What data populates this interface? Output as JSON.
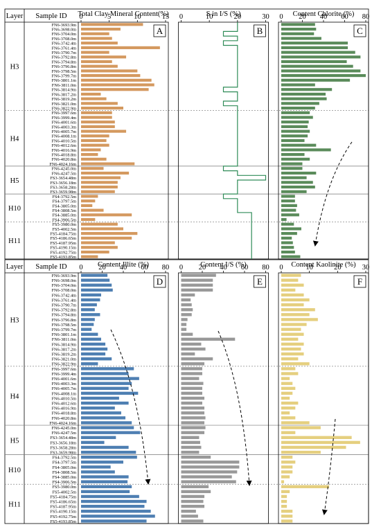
{
  "chart_data": [
    {
      "type": "bar",
      "panel": "A",
      "title": "Total Clay Mineral Content(%)",
      "xlim": [
        0,
        15
      ],
      "ticks": [
        0,
        5,
        10,
        15
      ],
      "color": "#d4995f",
      "categories": [
        "FN6-3693.9m",
        "FN6-3698.0m",
        "FN6-3704.0m",
        "FN6-3708.0m",
        "FN6-3742.4m",
        "FN6-3761.4m",
        "FN6-3790.7m",
        "FN6-3792.8m",
        "FN6-3794.8m",
        "FN6-3796.8m",
        "FN6-3798.5m",
        "FN6-3799.7m",
        "FN6-3801.1m",
        "FN6-3811.0m",
        "FN6-3814.9m",
        "FN6-3817.2m",
        "FN6-3819.2m",
        "FN6-3821.0m",
        "FN6-3822.9m",
        "FN6-3997.6m",
        "FN6-3999.4m",
        "FN6-4001.6m",
        "FN6-4003.3m",
        "FN6-4005.7m",
        "FN6-4008.1m",
        "FN6-4010.5m",
        "FN6-4012.6m",
        "FN6-4016.9m",
        "FN6-4018.8m",
        "FN6-4020.8m",
        "FN6-4024.16m",
        "FN6-4245.0m",
        "FN6-4247.5m",
        "FS3-3654.48m",
        "FS3-3656.18m",
        "FS3-3658.28m",
        "FS3-3659.98m",
        "FS4-3792.5m",
        "FS4-3797.5m",
        "FS4-3805.0m",
        "FS4-3808.5m",
        "FS4-3885.0m",
        "FS4-3906.5m",
        "FS5-3980.0m",
        "FS5-4002.5m",
        "FS5-4184.75m",
        "FS5-4186.65m",
        "FS5-4187.95m",
        "FS5-4190.15m",
        "FS5-4192.75m",
        "FS5-4193.85m"
      ],
      "values": [
        11,
        7,
        5,
        5.5,
        6.5,
        14,
        5,
        8,
        5.5,
        6.5,
        10,
        10.5,
        12.5,
        13,
        12,
        3.5,
        4.5,
        6.5,
        7.5,
        5.5,
        5.5,
        6,
        6,
        8,
        5,
        4.5,
        5,
        3.5,
        3,
        4.5,
        9.5,
        4,
        8.5,
        7,
        6.5,
        6.5,
        6,
        3,
        2.5,
        2,
        4,
        9,
        2.5,
        6.5,
        7.5,
        10,
        9,
        6,
        6.5,
        5,
        3
      ]
    },
    {
      "type": "line",
      "panel": "B",
      "title": "S in I/S (%)",
      "xlim": [
        0,
        30
      ],
      "ticks": [
        0,
        10,
        20,
        30
      ],
      "color": "#2e8b57",
      "values": [
        20,
        20,
        15,
        20,
        15,
        20,
        20,
        20,
        20,
        20,
        20,
        20,
        20,
        20,
        15,
        20,
        20,
        15,
        20,
        20,
        20,
        20,
        20,
        20,
        20,
        20,
        20,
        20,
        20,
        20,
        20,
        15,
        20,
        30,
        20,
        20,
        20,
        15,
        20,
        20,
        20,
        25,
        25,
        25,
        25,
        25,
        25,
        25,
        25,
        25,
        25
      ]
    },
    {
      "type": "bar",
      "panel": "C",
      "title": "Content Chlorite (%)",
      "xlim": [
        0,
        80
      ],
      "ticks": [
        0,
        20,
        40,
        60,
        80
      ],
      "color": "#5a8b5a",
      "values": [
        32,
        33,
        31,
        38,
        63,
        63,
        70,
        75,
        62,
        68,
        75,
        80,
        65,
        32,
        48,
        42,
        43,
        36,
        32,
        27,
        30,
        26,
        25,
        27,
        25,
        22,
        33,
        47,
        22,
        27,
        20,
        20,
        33,
        24,
        30,
        32,
        24,
        13,
        13,
        15,
        14,
        17,
        5,
        12,
        19,
        15,
        10,
        11,
        12,
        13,
        18
      ]
    },
    {
      "type": "bar",
      "panel": "D",
      "title": "Content Illite (%)",
      "xlim": [
        0,
        80
      ],
      "ticks": [
        0,
        20,
        40,
        60,
        80
      ],
      "color": "#4e7fb2",
      "values": [
        25,
        27,
        29,
        30,
        19,
        18,
        15,
        13,
        18,
        13,
        12,
        10,
        16,
        19,
        23,
        25,
        23,
        29,
        16,
        50,
        45,
        55,
        48,
        45,
        54,
        36,
        45,
        32,
        38,
        42,
        48,
        50,
        56,
        33,
        22,
        45,
        52,
        53,
        40,
        28,
        32,
        45,
        44,
        48,
        46,
        55,
        62,
        60,
        66,
        70,
        62
      ]
    },
    {
      "type": "bar",
      "panel": "E",
      "title": "Content I/S (%)",
      "xlim": [
        0,
        80
      ],
      "ticks": [
        0,
        20,
        40,
        60,
        80
      ],
      "color": "#999999",
      "values": [
        33,
        30,
        30,
        30,
        13,
        9,
        10,
        11,
        10,
        6,
        5,
        5,
        11,
        51,
        19,
        23,
        13,
        30,
        22,
        20,
        20,
        17,
        21,
        20,
        20,
        22,
        20,
        22,
        22,
        23,
        22,
        23,
        22,
        17,
        18,
        19,
        17,
        28,
        55,
        55,
        53,
        48,
        52,
        26,
        28,
        22,
        21,
        22,
        14,
        16,
        21
      ]
    },
    {
      "type": "bar",
      "panel": "F",
      "title": "Content Kaolinite (%)",
      "xlim": [
        0,
        30
      ],
      "ticks": [
        0,
        10,
        20,
        30
      ],
      "color": "#e5cf7f",
      "values": [
        7,
        6,
        8,
        5,
        8,
        10,
        8,
        12,
        10,
        13,
        9,
        7,
        8,
        6,
        8,
        7,
        8,
        6,
        10,
        5,
        6,
        3,
        4,
        5,
        4,
        3,
        6,
        5,
        3,
        5,
        10,
        14,
        5,
        25,
        28,
        23,
        14,
        4,
        5,
        4,
        4,
        3,
        1,
        17,
        3,
        2,
        2,
        2,
        4,
        4,
        4
      ]
    }
  ],
  "table": {
    "header_layer": "Layer",
    "header_sample": "Sample ID"
  },
  "layers": [
    {
      "label": "H3",
      "count": 19
    },
    {
      "label": "H4",
      "count": 12
    },
    {
      "label": "H5",
      "count": 6
    },
    {
      "label": "H10",
      "count": 6
    },
    {
      "label": "H11",
      "count": 8
    }
  ]
}
